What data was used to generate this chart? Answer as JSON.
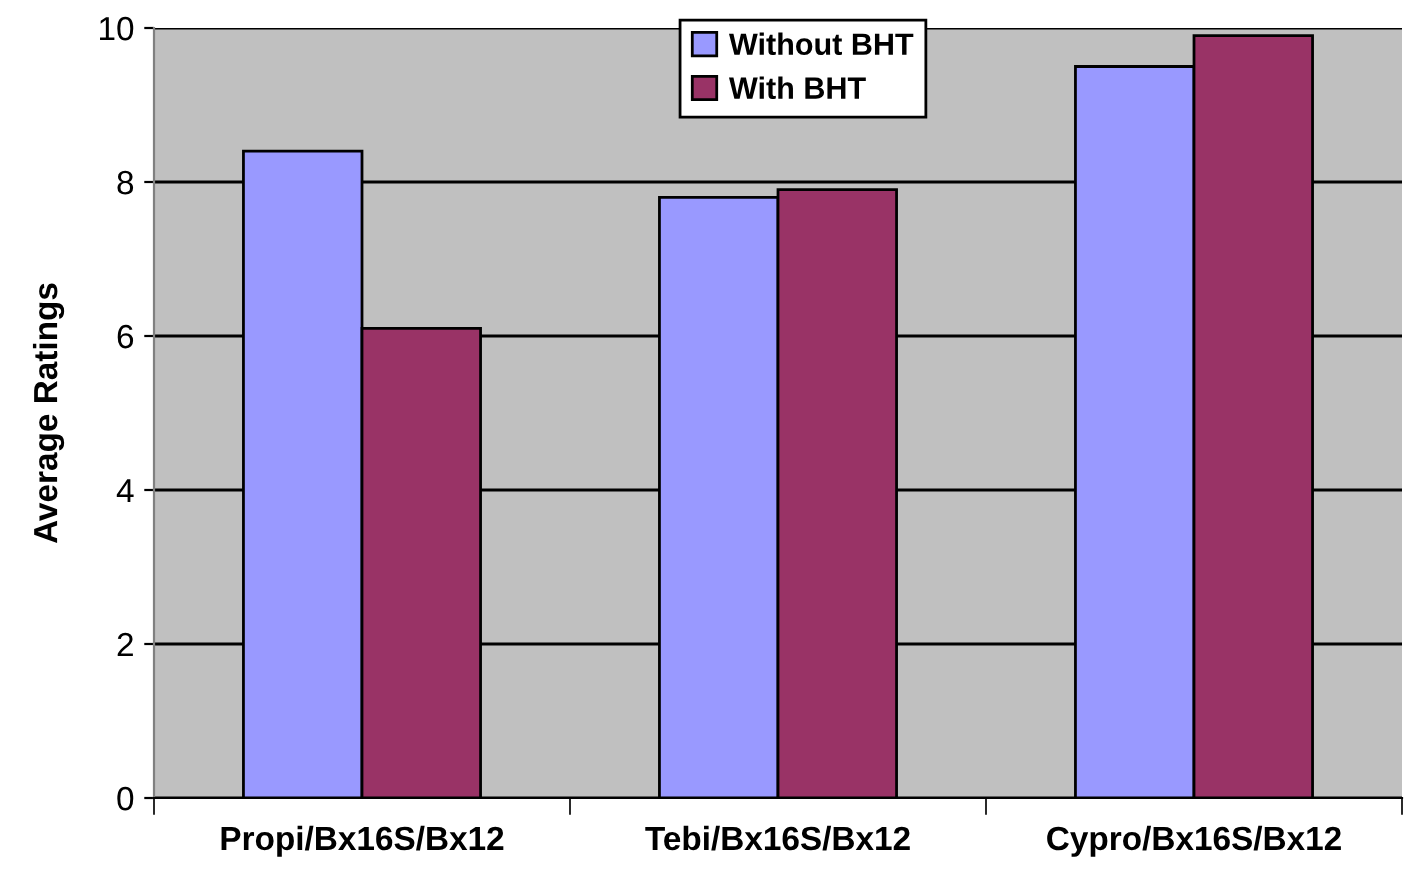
{
  "chart_data": {
    "type": "bar",
    "ylabel": "Average Ratings",
    "categories": [
      "Propi/Bx16S/Bx12",
      "Tebi/Bx16S/Bx12",
      "Cypro/Bx16S/Bx12"
    ],
    "series": [
      {
        "name": "Without BHT",
        "color": "#9999ff",
        "values": [
          8.4,
          7.8,
          9.5
        ]
      },
      {
        "name": "With BHT",
        "color": "#993366",
        "values": [
          6.1,
          7.9,
          9.9
        ]
      }
    ],
    "ylim": [
      0,
      10
    ],
    "yticks": [
      0,
      2,
      4,
      6,
      8,
      10
    ],
    "grid": "y",
    "legend": "top"
  }
}
